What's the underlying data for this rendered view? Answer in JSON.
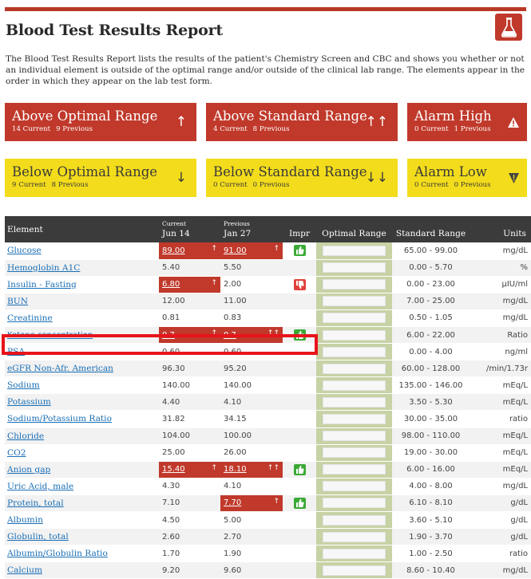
{
  "report": {
    "title": "Blood Test Results Report",
    "intro": "The Blood Test Results Report lists the results of the patient's Chemistry Screen and CBC and shows you whether or not an individual element is outside of the optimal range and/or outside of the clinical lab range. The elements appear in the order in which they appear on the lab test form.",
    "icon": "test-tube-icon"
  },
  "colors": {
    "red": "#c0392b",
    "yellow": "#f3dc1b",
    "header": "#3b3b3b",
    "link": "#1a6fb5",
    "optimal": "#c7d2a5"
  },
  "cards": {
    "above_optimal": {
      "title": "Above Optimal Range",
      "current": "14 Current",
      "previous": "9 Previous",
      "arrow": "↑"
    },
    "above_standard": {
      "title": "Above Standard Range",
      "current": "4 Current",
      "previous": "8 Previous",
      "arrow": "↑↑"
    },
    "alarm_high": {
      "title": "Alarm High",
      "current": "0 Current",
      "previous": "1 Previous",
      "arrow": "!"
    },
    "below_optimal": {
      "title": "Below Optimal Range",
      "current": "9 Current",
      "previous": "8 Previous",
      "arrow": "↓"
    },
    "below_standard": {
      "title": "Below Standard Range",
      "current": "0 Current",
      "previous": "0 Previous",
      "arrow": "↓↓"
    },
    "alarm_low": {
      "title": "Alarm Low",
      "current": "0 Current",
      "previous": "0 Previous",
      "arrow": "!"
    }
  },
  "table": {
    "headers": {
      "element": "Element",
      "current_label": "Current",
      "current_date": "Jun 14",
      "previous_label": "Previous",
      "previous_date": "Jan 27",
      "impr": "Impr",
      "optimal": "Optimal Range",
      "standard": "Standard Range",
      "units": "Units"
    },
    "rows": [
      {
        "name": "Glucose",
        "cur": "89.00",
        "cur_flag": "↑",
        "prev": "91.00",
        "prev_flag": "↑",
        "impr": "good",
        "std": "65.00 - 99.00",
        "units": "mg/dL"
      },
      {
        "name": "Hemoglobin A1C",
        "cur": "5.40",
        "cur_flag": "",
        "prev": "5.50",
        "prev_flag": "",
        "impr": "",
        "std": "0.00 - 5.70",
        "units": "%"
      },
      {
        "name": "Insulin - Fasting",
        "cur": "6.80",
        "cur_flag": "↑",
        "prev": "2.00",
        "prev_flag": "",
        "impr": "bad",
        "std": "0.00 - 23.00",
        "units": "µIU/ml"
      },
      {
        "name": "BUN",
        "cur": "12.00",
        "cur_flag": "",
        "prev": "11.00",
        "prev_flag": "",
        "impr": "",
        "std": "7.00 - 25.00",
        "units": "mg/dL"
      },
      {
        "name": "Creatinine",
        "cur": "0.81",
        "cur_flag": "",
        "prev": "0.83",
        "prev_flag": "",
        "impr": "",
        "std": "0.50 - 1.05",
        "units": "mg/dL"
      },
      {
        "name": "Ketone concentration",
        "cur": "0.7",
        "cur_flag": "↑",
        "prev": "0.7",
        "prev_flag": "↑↑",
        "impr": "good",
        "std": "6.00 - 22.00",
        "units": "Ratio"
      },
      {
        "name": "PSA",
        "cur": "0.60",
        "cur_flag": "",
        "prev": "0.60",
        "prev_flag": "",
        "impr": "",
        "std": "0.00 - 4.00",
        "units": "ng/ml"
      },
      {
        "name": "eGFR Non-Afr. American",
        "cur": "96.30",
        "cur_flag": "",
        "prev": "95.20",
        "prev_flag": "",
        "impr": "",
        "std": "60.00 - 128.00",
        "units": "/min/1.73r"
      },
      {
        "name": "Sodium",
        "cur": "140.00",
        "cur_flag": "",
        "prev": "140.00",
        "prev_flag": "",
        "impr": "",
        "std": "135.00 - 146.00",
        "units": "mEq/L"
      },
      {
        "name": "Potassium",
        "cur": "4.40",
        "cur_flag": "",
        "prev": "4.10",
        "prev_flag": "",
        "impr": "",
        "std": "3.50 - 5.30",
        "units": "mEq/L"
      },
      {
        "name": "Sodium/Potassium Ratio",
        "cur": "31.82",
        "cur_flag": "",
        "prev": "34.15",
        "prev_flag": "",
        "impr": "",
        "std": "30.00 - 35.00",
        "units": "ratio"
      },
      {
        "name": "Chloride",
        "cur": "104.00",
        "cur_flag": "",
        "prev": "100.00",
        "prev_flag": "",
        "impr": "",
        "std": "98.00 - 110.00",
        "units": "mEq/L"
      },
      {
        "name": "CO2",
        "cur": "25.00",
        "cur_flag": "",
        "prev": "26.00",
        "prev_flag": "",
        "impr": "",
        "std": "19.00 - 30.00",
        "units": "mEq/L"
      },
      {
        "name": "Anion gap",
        "cur": "15.40",
        "cur_flag": "↑",
        "prev": "18.10",
        "prev_flag": "↑↑",
        "impr": "good",
        "std": "6.00 - 16.00",
        "units": "mEq/L"
      },
      {
        "name": "Uric Acid, male",
        "cur": "4.30",
        "cur_flag": "",
        "prev": "4.10",
        "prev_flag": "",
        "impr": "",
        "std": "4.00 - 8.00",
        "units": "mg/dL"
      },
      {
        "name": "Protein, total",
        "cur": "7.10",
        "cur_flag": "",
        "prev": "7.70",
        "prev_flag": "↑",
        "impr": "good",
        "std": "6.10 - 8.10",
        "units": "g/dL"
      },
      {
        "name": "Albumin",
        "cur": "4.50",
        "cur_flag": "",
        "prev": "5.00",
        "prev_flag": "",
        "impr": "",
        "std": "3.60 - 5.10",
        "units": "g/dL"
      },
      {
        "name": "Globulin, total",
        "cur": "2.60",
        "cur_flag": "",
        "prev": "2.70",
        "prev_flag": "",
        "impr": "",
        "std": "1.90 - 3.70",
        "units": "g/dL"
      },
      {
        "name": "Albumin/Globulin Ratio",
        "cur": "1.70",
        "cur_flag": "",
        "prev": "1.90",
        "prev_flag": "",
        "impr": "",
        "std": "1.00 - 2.50",
        "units": "ratio"
      },
      {
        "name": "Calcium",
        "cur": "9.20",
        "cur_flag": "",
        "prev": "9.60",
        "prev_flag": "",
        "impr": "",
        "std": "8.60 - 10.40",
        "units": "mg/dL"
      }
    ]
  }
}
